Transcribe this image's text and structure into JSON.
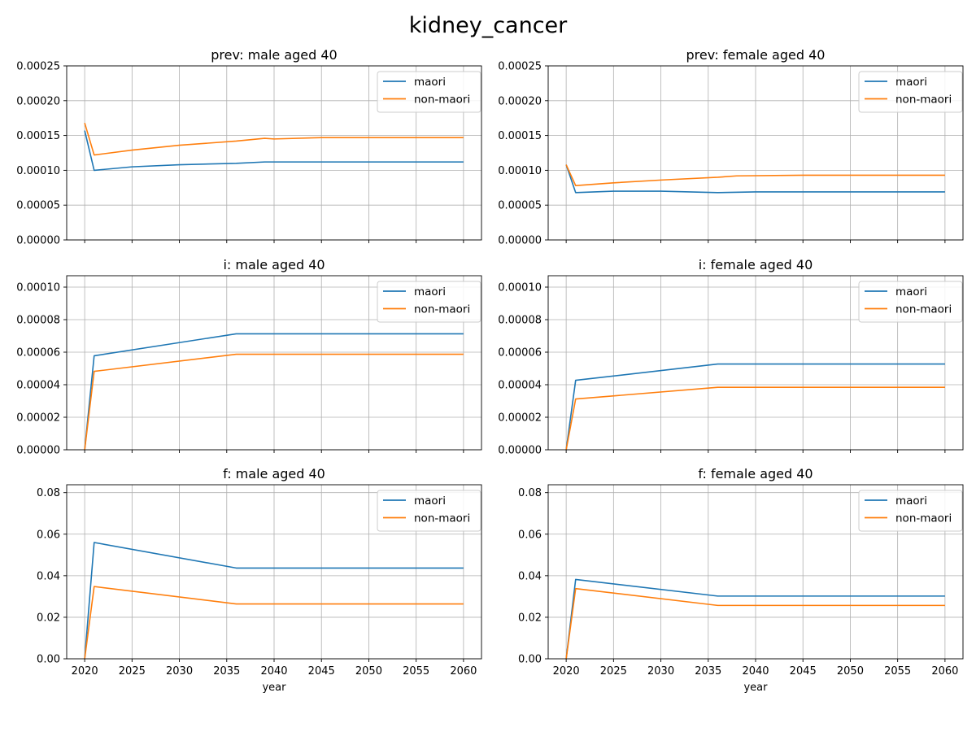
{
  "figure": {
    "title": "kidney_cancer"
  },
  "colors": {
    "maori": "#1f77b4",
    "non_maori": "#ff7f0e",
    "grid": "#b0b0b0"
  },
  "chart_data": [
    {
      "type": "line",
      "title": "prev: male aged 40",
      "xlabel": "",
      "ylabel": "",
      "xlim": [
        2018.1,
        2061.9
      ],
      "ylim": [
        0,
        0.00025
      ],
      "yticks": [
        "0.00000",
        "0.00005",
        "0.00010",
        "0.00015",
        "0.00020",
        "0.00025"
      ],
      "ytick_values": [
        0,
        5e-05,
        0.0001,
        0.00015,
        0.0002,
        0.00025
      ],
      "xticks": [
        2020,
        2025,
        2030,
        2035,
        2040,
        2045,
        2050,
        2055,
        2060
      ],
      "show_xticklabels": false,
      "grid": true,
      "legend": "upper right",
      "series": [
        {
          "name": "maori",
          "x": [
            2020,
            2021,
            2025,
            2030,
            2036,
            2039,
            2045,
            2060
          ],
          "y": [
            0.000157,
            0.0001,
            0.000105,
            0.000108,
            0.00011,
            0.000112,
            0.000112,
            0.000112
          ]
        },
        {
          "name": "non-maori",
          "x": [
            2020,
            2021,
            2025,
            2030,
            2036,
            2039,
            2040,
            2045,
            2060
          ],
          "y": [
            0.000168,
            0.000122,
            0.000129,
            0.000136,
            0.000142,
            0.000146,
            0.000145,
            0.000147,
            0.000147
          ]
        }
      ]
    },
    {
      "type": "line",
      "title": "prev: female aged 40",
      "xlabel": "",
      "ylabel": "",
      "xlim": [
        2018.1,
        2061.9
      ],
      "ylim": [
        0,
        0.00025
      ],
      "yticks": [
        "0.00000",
        "0.00005",
        "0.00010",
        "0.00015",
        "0.00020",
        "0.00025"
      ],
      "ytick_values": [
        0,
        5e-05,
        0.0001,
        0.00015,
        0.0002,
        0.00025
      ],
      "xticks": [
        2020,
        2025,
        2030,
        2035,
        2040,
        2045,
        2050,
        2055,
        2060
      ],
      "show_xticklabels": false,
      "grid": true,
      "legend": "upper right",
      "series": [
        {
          "name": "maori",
          "x": [
            2020,
            2021,
            2025,
            2030,
            2036,
            2040,
            2060
          ],
          "y": [
            0.000108,
            6.8e-05,
            7e-05,
            7e-05,
            6.8e-05,
            6.9e-05,
            6.9e-05
          ]
        },
        {
          "name": "non-maori",
          "x": [
            2020,
            2021,
            2025,
            2030,
            2036,
            2038,
            2045,
            2060
          ],
          "y": [
            0.000108,
            7.8e-05,
            8.2e-05,
            8.6e-05,
            9e-05,
            9.2e-05,
            9.3e-05,
            9.3e-05
          ]
        }
      ]
    },
    {
      "type": "line",
      "title": "i: male aged 40",
      "xlabel": "",
      "ylabel": "",
      "xlim": [
        2018.1,
        2061.9
      ],
      "ylim": [
        0,
        0.000107
      ],
      "yticks": [
        "0.00000",
        "0.00002",
        "0.00004",
        "0.00006",
        "0.00008",
        "0.00010"
      ],
      "ytick_values": [
        0,
        2e-05,
        4e-05,
        6e-05,
        8e-05,
        0.0001
      ],
      "xticks": [
        2020,
        2025,
        2030,
        2035,
        2040,
        2045,
        2050,
        2055,
        2060
      ],
      "show_xticklabels": false,
      "grid": true,
      "legend": "upper right",
      "series": [
        {
          "name": "maori",
          "x": [
            2020,
            2021,
            2036,
            2060
          ],
          "y": [
            0,
            5.78e-05,
            7.13e-05,
            7.13e-05
          ]
        },
        {
          "name": "non-maori",
          "x": [
            2020,
            2021,
            2036,
            2060
          ],
          "y": [
            0,
            4.82e-05,
            5.87e-05,
            5.87e-05
          ]
        }
      ]
    },
    {
      "type": "line",
      "title": "i: female aged 40",
      "xlabel": "",
      "ylabel": "",
      "xlim": [
        2018.1,
        2061.9
      ],
      "ylim": [
        0,
        0.000107
      ],
      "yticks": [
        "0.00000",
        "0.00002",
        "0.00004",
        "0.00006",
        "0.00008",
        "0.00010"
      ],
      "ytick_values": [
        0,
        2e-05,
        4e-05,
        6e-05,
        8e-05,
        0.0001
      ],
      "xticks": [
        2020,
        2025,
        2030,
        2035,
        2040,
        2045,
        2050,
        2055,
        2060
      ],
      "show_xticklabels": false,
      "grid": true,
      "legend": "upper right",
      "series": [
        {
          "name": "maori",
          "x": [
            2020,
            2021,
            2036,
            2060
          ],
          "y": [
            0,
            4.27e-05,
            5.27e-05,
            5.27e-05
          ]
        },
        {
          "name": "non-maori",
          "x": [
            2020,
            2021,
            2036,
            2060
          ],
          "y": [
            0,
            3.12e-05,
            3.84e-05,
            3.84e-05
          ]
        }
      ]
    },
    {
      "type": "line",
      "title": "f: male aged 40",
      "xlabel": "year",
      "ylabel": "",
      "xlim": [
        2018.1,
        2061.9
      ],
      "ylim": [
        0,
        0.0838
      ],
      "yticks": [
        "0.00",
        "0.02",
        "0.04",
        "0.06",
        "0.08"
      ],
      "ytick_values": [
        0,
        0.02,
        0.04,
        0.06,
        0.08
      ],
      "xticks": [
        2020,
        2025,
        2030,
        2035,
        2040,
        2045,
        2050,
        2055,
        2060
      ],
      "show_xticklabels": true,
      "grid": true,
      "legend": "upper right",
      "series": [
        {
          "name": "maori",
          "x": [
            2020,
            2021,
            2036,
            2060
          ],
          "y": [
            0,
            0.056,
            0.0437,
            0.0437
          ]
        },
        {
          "name": "non-maori",
          "x": [
            2020,
            2021,
            2036,
            2060
          ],
          "y": [
            0,
            0.0348,
            0.0264,
            0.0264
          ]
        }
      ]
    },
    {
      "type": "line",
      "title": "f: female aged 40",
      "xlabel": "year",
      "ylabel": "",
      "xlim": [
        2018.1,
        2061.9
      ],
      "ylim": [
        0,
        0.0838
      ],
      "yticks": [
        "0.00",
        "0.02",
        "0.04",
        "0.06",
        "0.08"
      ],
      "ytick_values": [
        0,
        0.02,
        0.04,
        0.06,
        0.08
      ],
      "xticks": [
        2020,
        2025,
        2030,
        2035,
        2040,
        2045,
        2050,
        2055,
        2060
      ],
      "show_xticklabels": true,
      "grid": true,
      "legend": "upper right",
      "series": [
        {
          "name": "maori",
          "x": [
            2020,
            2021,
            2036,
            2060
          ],
          "y": [
            0,
            0.0382,
            0.0302,
            0.0302
          ]
        },
        {
          "name": "non-maori",
          "x": [
            2020,
            2021,
            2036,
            2060
          ],
          "y": [
            0,
            0.0338,
            0.0257,
            0.0257
          ]
        }
      ]
    }
  ]
}
